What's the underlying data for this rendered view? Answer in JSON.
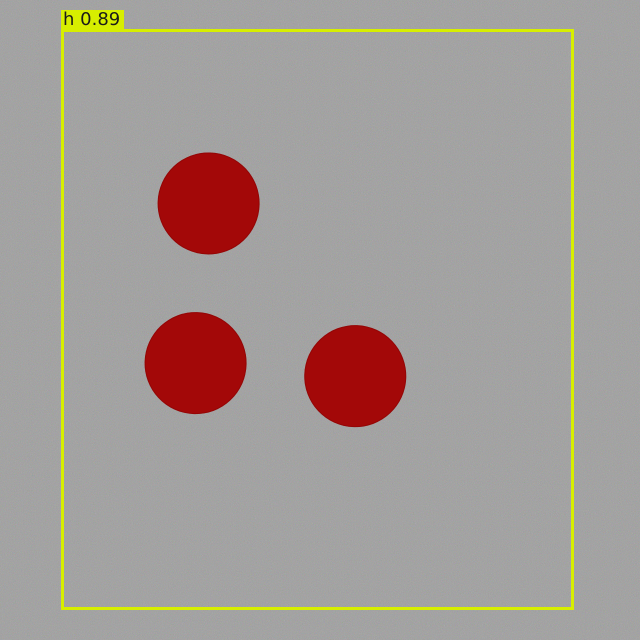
{
  "detection": {
    "class": "h",
    "score": "0.89"
  },
  "colors": {
    "background": "#9a9a9a",
    "circles": "#a30808",
    "box": "#d7ee00"
  },
  "objects": [
    {
      "name": "red-circle-1"
    },
    {
      "name": "red-circle-2"
    },
    {
      "name": "red-circle-3"
    }
  ]
}
